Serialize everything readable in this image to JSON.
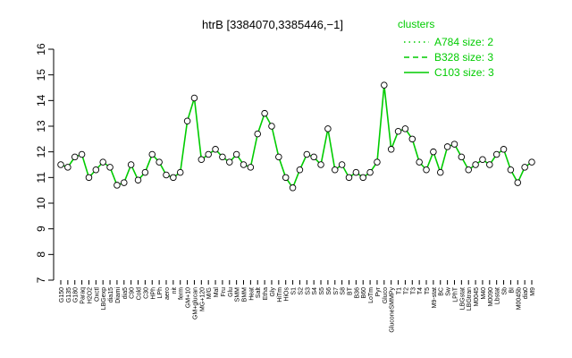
{
  "chart_data": {
    "type": "line",
    "title": "htrB [3384070,3385446,−1]",
    "xlabel": "",
    "ylabel": "",
    "ylim": [
      7,
      16
    ],
    "yticks": [
      7,
      8,
      9,
      10,
      11,
      12,
      13,
      14,
      15,
      16
    ],
    "grid": false,
    "legend": {
      "title": "clusters",
      "placement": "top-right",
      "color": "#00cc00",
      "entries": [
        {
          "label": "A784 size: 2",
          "style": "dotted"
        },
        {
          "label": "B328 size: 3",
          "style": "dashed"
        },
        {
          "label": "C103 size: 3",
          "style": "solid"
        }
      ]
    },
    "categories": [
      "G150",
      "G135",
      "G180",
      "Paraq",
      "H2O2",
      "Oxctl",
      "LBGexp",
      "dia15",
      "Diami",
      "dia5",
      "C90",
      "Cold",
      "C30",
      "HPh",
      "LPh",
      "aero",
      "nit",
      "ferm",
      "GM+10",
      "GM+glucan",
      "MG+120",
      "M/G",
      "Mal",
      "Fru",
      "Glu",
      "SMM",
      "BMM",
      "Heat",
      "Salt",
      "Etha",
      "Gly",
      "HiTm",
      "HiOs",
      "S1",
      "S2",
      "S3",
      "S4",
      "S5",
      "S6",
      "S7",
      "S8",
      "BT",
      "B36",
      "B60",
      "LoTm",
      "Pyr",
      "Gluco",
      "GluconeSMMPy",
      "T1",
      "T2",
      "T3",
      "T4",
      "T5",
      "M9-stat",
      "BC",
      "Sw",
      "LPhT",
      "LBGstat",
      "LBGtran",
      "M0045",
      "M40",
      "M0090",
      "Lbstat",
      "Sb",
      "BI",
      "M0045b",
      "dia0",
      "M9"
    ],
    "tick_labels": [
      "G150",
      "G135",
      "G180",
      "Paraq",
      "H2O2",
      "Oxctl",
      "LBGexp",
      "dia15",
      "Diami",
      "dia5",
      "C90",
      "Cold",
      "C30",
      "HPh",
      "LPh",
      "aero",
      "nit",
      "ferm",
      "GM+10",
      "GM+glucan",
      "MG+120",
      "M/G",
      "Mal",
      "Fru",
      "Glu",
      "SMM",
      "BMM",
      "Heat",
      "Salt",
      "Etha",
      "Gly",
      "HiTm",
      "HiOs",
      "S1",
      "S2",
      "S3",
      "S4",
      "S5",
      "S6",
      "S7",
      "S8",
      "BT",
      "B36",
      "B60",
      "LoTm",
      "Pyr",
      "Gluco",
      "GluconeSMMPy",
      "T1",
      "T2",
      "T3",
      "T4",
      "T5",
      "M9-stat",
      "BC",
      "Sw",
      "LPhT",
      "LBGstat",
      "LBGtran",
      "M0045",
      "M40",
      "M0090",
      "Lbstat",
      "Sb",
      "BI",
      "M0045b",
      "dia0",
      "M9"
    ],
    "series": [
      {
        "style": "solid",
        "color": "#00cc00",
        "values": [
          11.5,
          11.4,
          11.8,
          11.9,
          11.0,
          11.3,
          11.6,
          11.4,
          10.7,
          10.8,
          11.5,
          10.9,
          11.2,
          11.9,
          11.6,
          11.1,
          11.0,
          11.2,
          13.2,
          14.1,
          11.7,
          11.9,
          12.1,
          11.8,
          11.6,
          11.9,
          11.5,
          11.4,
          12.7,
          13.5,
          13.0,
          11.8,
          11.0,
          10.6,
          11.3,
          11.9,
          11.8,
          11.5,
          12.9,
          11.3,
          11.5,
          11.0,
          11.2,
          11.0,
          11.2,
          11.6,
          14.6,
          12.1,
          12.8,
          12.9,
          12.5,
          11.6,
          11.3,
          12.0,
          11.2,
          12.2,
          12.3,
          11.8,
          11.3,
          11.5,
          11.7,
          11.5,
          11.9,
          12.1,
          11.3,
          10.8,
          11.4,
          11.6
        ]
      }
    ]
  }
}
